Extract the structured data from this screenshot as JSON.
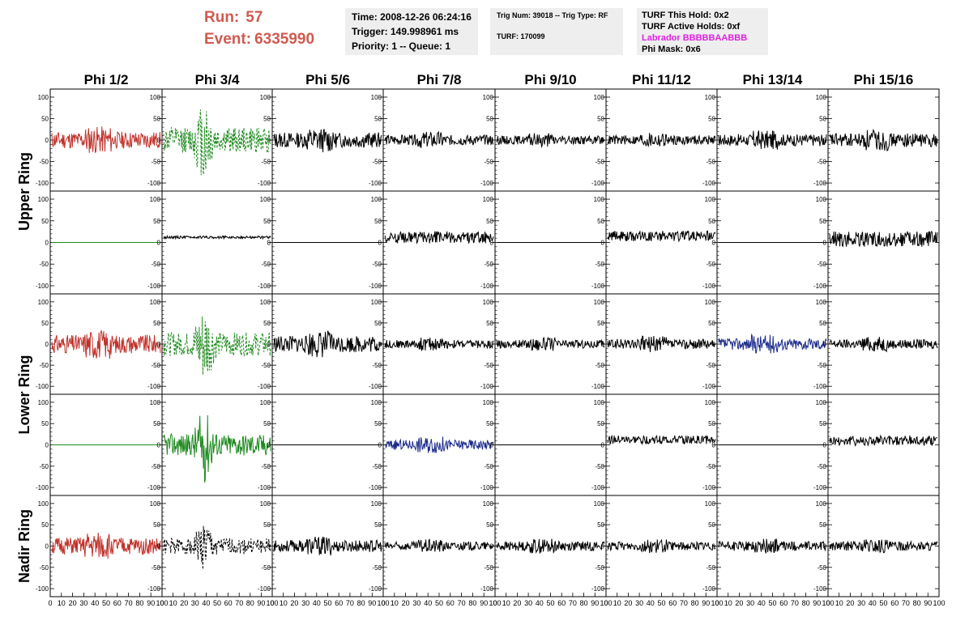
{
  "header": {
    "run_label": "Run:",
    "run_value": "57",
    "event_label": "Event:",
    "event_value": "6335990"
  },
  "info_box_1": {
    "time": "Time: 2008-12-26 06:24:16",
    "trigger": "Trigger: 149.998961 ms",
    "priority": "Priority: 1 -- Queue: 1"
  },
  "info_box_2": {
    "trig": "Trig Num: 39018 -- Trig Type: RF",
    "turf": "TURF: 170099"
  },
  "info_box_3": {
    "this_hold": "TURF This Hold: 0x2",
    "active_holds": "TURF Active Holds: 0xf",
    "labrador": "Labrador BBBBBAABBB",
    "phi_mask": "Phi Mask: 0x6"
  },
  "chart_data": {
    "type": "line",
    "columns": [
      "Phi 1/2",
      "Phi 3/4",
      "Phi 5/6",
      "Phi 7/8",
      "Phi 9/10",
      "Phi 11/12",
      "Phi 13/14",
      "Phi 15/16"
    ],
    "ring_labels": [
      "Upper Ring",
      "Lower Ring",
      "Nadir Ring"
    ],
    "xlim": [
      0,
      100
    ],
    "ylim": [
      -115,
      115
    ],
    "y_ticks": [
      -100,
      -50,
      0,
      50,
      100
    ],
    "x_ticks": [
      0,
      10,
      20,
      30,
      40,
      50,
      60,
      70,
      80,
      90,
      100
    ],
    "colors": {
      "red": "#c0312a",
      "green": "#1e8a1e",
      "blue": "#1a2a8a",
      "black": "#000000",
      "magenta": "#e020e0"
    },
    "panels": [
      [
        {
          "amp": 20,
          "color": "red",
          "style": "noise",
          "seed": 11
        },
        {
          "amp": 30,
          "color": "green",
          "style": "spike",
          "dashed": true,
          "seed": 12
        },
        {
          "amp": 18,
          "color": "black",
          "style": "noise",
          "seed": 13
        },
        {
          "amp": 12,
          "color": "black",
          "style": "noise",
          "seed": 14
        },
        {
          "amp": 10,
          "color": "black",
          "style": "noise",
          "seed": 15
        },
        {
          "amp": 11,
          "color": "black",
          "style": "noise",
          "seed": 16
        },
        {
          "amp": 14,
          "color": "black",
          "style": "noise",
          "seed": 17
        },
        {
          "amp": 16,
          "color": "black",
          "style": "noise",
          "seed": 18
        }
      ],
      [
        {
          "amp": 0,
          "color": "green",
          "style": "flat",
          "seed": 21
        },
        {
          "amp": 3,
          "color": "black",
          "style": "offset",
          "offset": 12,
          "seed": 22
        },
        {
          "amp": 0,
          "color": "black",
          "style": "flat",
          "seed": 23
        },
        {
          "amp": 14,
          "color": "black",
          "style": "offset",
          "offset": 12,
          "seed": 24
        },
        {
          "amp": 0,
          "color": "black",
          "style": "flat",
          "seed": 25
        },
        {
          "amp": 12,
          "color": "black",
          "style": "offset",
          "offset": 15,
          "seed": 26
        },
        {
          "amp": 0,
          "color": "black",
          "style": "flat",
          "seed": 27
        },
        {
          "amp": 18,
          "color": "black",
          "style": "offset",
          "offset": 8,
          "seed": 28
        }
      ],
      [
        {
          "amp": 22,
          "color": "red",
          "style": "noise",
          "seed": 31
        },
        {
          "amp": 28,
          "color": "green",
          "style": "spike",
          "dashed": true,
          "seed": 32
        },
        {
          "amp": 20,
          "color": "black",
          "style": "noise",
          "seed": 33
        },
        {
          "amp": 10,
          "color": "black",
          "style": "noise",
          "seed": 34
        },
        {
          "amp": 10,
          "color": "black",
          "style": "noise",
          "seed": 35
        },
        {
          "amp": 12,
          "color": "black",
          "style": "noise",
          "seed": 36
        },
        {
          "amp": 14,
          "color": "blue",
          "style": "noise",
          "seed": 37
        },
        {
          "amp": 11,
          "color": "black",
          "style": "noise",
          "seed": 38
        }
      ],
      [
        {
          "amp": 0,
          "color": "green",
          "style": "flat",
          "seed": 41
        },
        {
          "amp": 26,
          "color": "green",
          "style": "spike",
          "seed": 42
        },
        {
          "amp": 0,
          "color": "black",
          "style": "flat",
          "seed": 43
        },
        {
          "amp": 12,
          "color": "blue",
          "style": "noise",
          "seed": 44
        },
        {
          "amp": 0,
          "color": "black",
          "style": "flat",
          "seed": 45
        },
        {
          "amp": 10,
          "color": "black",
          "style": "offset",
          "offset": 12,
          "seed": 46
        },
        {
          "amp": 0,
          "color": "black",
          "style": "flat",
          "seed": 47
        },
        {
          "amp": 12,
          "color": "black",
          "style": "offset",
          "offset": 10,
          "seed": 48
        }
      ],
      [
        {
          "amp": 20,
          "color": "red",
          "style": "noise",
          "seed": 51
        },
        {
          "amp": 18,
          "color": "black",
          "style": "spike",
          "dashed": true,
          "seed": 52
        },
        {
          "amp": 14,
          "color": "black",
          "style": "noise",
          "seed": 53
        },
        {
          "amp": 10,
          "color": "black",
          "style": "noise",
          "seed": 54
        },
        {
          "amp": 11,
          "color": "black",
          "style": "noise",
          "seed": 55
        },
        {
          "amp": 10,
          "color": "black",
          "style": "noise",
          "seed": 56
        },
        {
          "amp": 11,
          "color": "black",
          "style": "noise",
          "seed": 57
        },
        {
          "amp": 11,
          "color": "black",
          "style": "noise",
          "seed": 58
        }
      ]
    ]
  }
}
